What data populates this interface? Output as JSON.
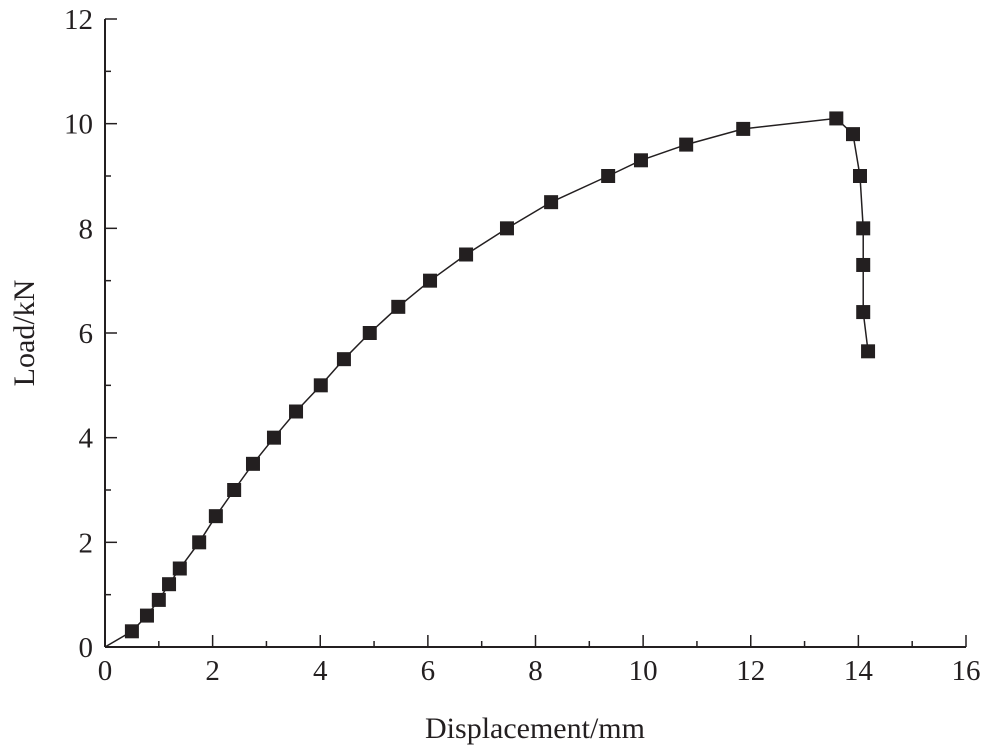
{
  "chart_data": {
    "type": "line",
    "title": "",
    "xlabel": "Displacement/mm",
    "ylabel": "Load/kN",
    "xlim": [
      0,
      16
    ],
    "ylim": [
      0,
      12
    ],
    "xticks": [
      0,
      2,
      4,
      6,
      8,
      10,
      12,
      14,
      16
    ],
    "yticks": [
      0,
      2,
      4,
      6,
      8,
      10,
      12
    ],
    "grid": false,
    "marker": "square",
    "colors": {
      "line": "#231f20",
      "marker": "#231f20"
    },
    "series": [
      {
        "x": [
          0,
          0.5,
          0.78,
          1.0,
          1.19,
          1.39,
          1.75,
          2.06,
          2.4,
          2.75,
          3.14,
          3.55,
          4.01,
          4.44,
          4.92,
          5.45,
          6.04,
          6.71,
          7.47,
          8.29,
          9.35,
          9.96,
          10.8,
          11.86,
          13.59,
          13.9,
          14.03,
          14.09,
          14.09,
          14.09,
          14.18
        ],
        "y": [
          0,
          0.3,
          0.6,
          0.9,
          1.2,
          1.5,
          2.0,
          2.5,
          3.0,
          3.5,
          4.0,
          4.5,
          5.0,
          5.5,
          6.0,
          6.5,
          7.0,
          7.5,
          8.0,
          8.5,
          9.0,
          9.3,
          9.6,
          9.9,
          10.1,
          9.8,
          9.0,
          8.0,
          7.3,
          6.4,
          5.65
        ],
        "markers_from_index": 1
      }
    ]
  }
}
